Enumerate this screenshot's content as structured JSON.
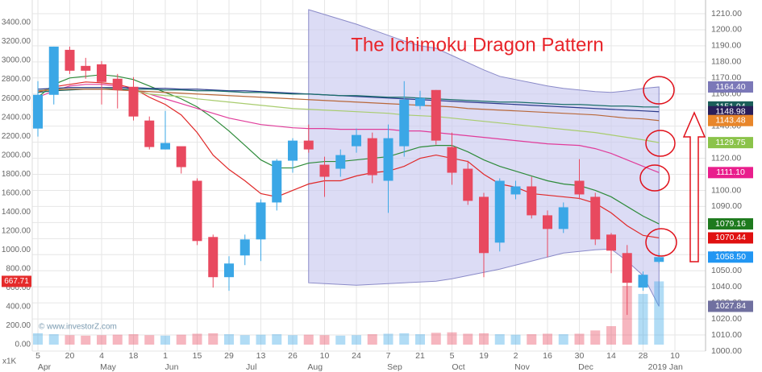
{
  "chart_data": {
    "type": "candlestick",
    "title": "The Ichimoku Dragon Pattern",
    "watermark": "© www.investorZ.com",
    "volume_unit": "x1K",
    "up_color": "#3ba7e6",
    "down_color": "#e8495f",
    "categories": [
      "5",
      null,
      "20",
      null,
      "4",
      null,
      "18",
      null,
      "1",
      null,
      "15",
      null,
      "29",
      null,
      "13",
      null,
      "26",
      null,
      "10",
      null,
      "24",
      null,
      "7",
      null,
      "21",
      null,
      "5",
      null,
      "19",
      null,
      "2",
      null,
      "16",
      null,
      "30",
      null,
      "14",
      null,
      "28",
      null,
      "10"
    ],
    "months": [
      "Apr",
      null,
      null,
      null,
      "May",
      null,
      null,
      null,
      "Jun",
      null,
      null,
      null,
      null,
      "Jul",
      null,
      null,
      null,
      "Aug",
      null,
      null,
      null,
      null,
      "Sep",
      null,
      null,
      null,
      "Oct",
      null,
      null,
      null,
      "Nov",
      null,
      null,
      null,
      "Dec",
      null,
      null,
      null,
      null,
      "2019 Jan",
      null
    ],
    "open": [
      1138.5,
      1159.5,
      1187.5,
      1177.5,
      1178.5,
      1169.5,
      1164.5,
      1143.5,
      1125.5,
      1127.5,
      1106,
      1071,
      1046,
      1059.5,
      1069.5,
      1092.5,
      1118.5,
      1131,
      1116,
      1113.5,
      1127.5,
      1132.5,
      1106,
      1127.5,
      1152.5,
      1162.5,
      1127,
      1113.5,
      1096,
      1067.5,
      1097.5,
      1102.5,
      1084.5,
      1076,
      1106,
      1096,
      1072.5,
      1061,
      1039.5,
      1055.5,
      null
    ],
    "high": [
      1168,
      1189.5,
      1189.5,
      1182.5,
      1180.5,
      1172.5,
      1170.5,
      1146,
      1149.5,
      1127,
      1107.5,
      1072.5,
      1059,
      1072.5,
      1094.5,
      1119.5,
      1132.5,
      1141,
      1121,
      1125.5,
      1138.5,
      1136,
      1141,
      1168,
      1162,
      1162.5,
      1136,
      1118.5,
      1098.5,
      1107.5,
      1106,
      1108.5,
      1087.5,
      1092.5,
      1119.5,
      1098.5,
      1073.5,
      1066,
      1049.5,
      1061,
      null
    ],
    "low": [
      1133.5,
      1153.5,
      1172.5,
      1169.5,
      1153.5,
      1151,
      1143.5,
      1125.5,
      1125.5,
      1110.5,
      1066,
      1039.5,
      1037.5,
      1053.5,
      1056,
      1087.5,
      1111,
      1123.5,
      1096,
      1108.5,
      1123.5,
      1104.5,
      1086,
      1121,
      1150.5,
      1128.5,
      1103.5,
      1091,
      1046,
      1062,
      1094.5,
      1082.5,
      1058.5,
      1073.5,
      1094.5,
      1066,
      1048.5,
      1022.5,
      1037.5,
      1054.5,
      null
    ],
    "close": [
      1159.5,
      1189.5,
      1174.5,
      1174.5,
      1167.5,
      1162.5,
      1146,
      1127,
      1129.5,
      1114.5,
      1068.5,
      1046,
      1054.5,
      1069.5,
      1092.5,
      1118.5,
      1131,
      1125.5,
      1108.5,
      1122,
      1134.5,
      1109.5,
      1132.5,
      1156.5,
      1157.5,
      1131,
      1111,
      1093.5,
      1061,
      1106,
      1102.5,
      1084.5,
      1076,
      1089.5,
      1097.5,
      1069.5,
      1062.5,
      1042.5,
      1047.5,
      1058.5,
      null
    ],
    "volume": [
      120,
      110,
      100,
      95,
      100,
      105,
      110,
      100,
      95,
      105,
      115,
      120,
      110,
      100,
      105,
      110,
      100,
      105,
      100,
      95,
      100,
      110,
      115,
      120,
      110,
      125,
      130,
      115,
      120,
      110,
      105,
      110,
      115,
      110,
      115,
      150,
      195,
      620,
      535,
      667.71,
      null
    ],
    "volume_tag": {
      "value": 667.71,
      "label": "667.71",
      "color": "#e52b2b"
    },
    "series": [
      {
        "color": "#e02828",
        "values": [
          1161,
          1164.5,
          1166,
          1167.5,
          1167,
          1166,
          1163.5,
          1158,
          1153.5,
          1147,
          1136,
          1122,
          1113,
          1106,
          1098,
          1096,
          1100,
          1104,
          1106,
          1106,
          1109,
          1111,
          1112,
          1115,
          1120,
          1122,
          1120,
          1118,
          1110,
          1104,
          1102,
          1098,
          1097,
          1096,
          1095,
          1092,
          1086,
          1078,
          1072,
          1070.44,
          null
        ]
      },
      {
        "color": "#2e8b3a",
        "values": [
          1158,
          1166,
          1170,
          1171,
          1172,
          1171,
          1169,
          1165,
          1161,
          1157,
          1152,
          1145,
          1137,
          1128,
          1119,
          1114,
          1114,
          1117,
          1118,
          1118,
          1119,
          1120,
          1121,
          1124,
          1127,
          1128,
          1128,
          1124,
          1119,
          1115,
          1112,
          1109,
          1106,
          1104,
          1103,
          1100,
          1096,
          1090,
          1084,
          1079.16,
          null
        ]
      },
      {
        "color": "#e03c9a",
        "values": [
          1158,
          1162,
          1165,
          1166,
          1166,
          1165,
          1163,
          1160,
          1157,
          1154,
          1151,
          1148,
          1145,
          1143,
          1141,
          1140,
          1139,
          1138.5,
          1138.5,
          1138,
          1138,
          1138,
          1138,
          1137,
          1137,
          1136,
          1135,
          1134,
          1133,
          1132,
          1131,
          1130,
          1129,
          1128.5,
          1128,
          1126,
          1123,
          1119,
          1115,
          1111.1,
          null
        ]
      },
      {
        "color": "#a8cc6e",
        "values": [
          1162,
          1163,
          1164,
          1164,
          1164,
          1163,
          1162,
          1160,
          1159,
          1158.5,
          1157,
          1156,
          1155,
          1154,
          1153,
          1152,
          1151,
          1150.5,
          1150,
          1149.5,
          1149,
          1148.5,
          1148,
          1147,
          1146.5,
          1146,
          1145,
          1144,
          1143,
          1142,
          1141,
          1140,
          1139,
          1138,
          1137,
          1136,
          1134.5,
          1133,
          1131.5,
          1129.75,
          null
        ]
      },
      {
        "color": "#2b3a8c",
        "values": [
          1163,
          1163.5,
          1164,
          1164,
          1164,
          1164,
          1164,
          1163.5,
          1163.5,
          1163,
          1163,
          1162.5,
          1162,
          1162,
          1161.5,
          1161,
          1160.5,
          1160,
          1159.5,
          1159,
          1158.5,
          1158,
          1157.5,
          1157,
          1156.5,
          1156,
          1155.5,
          1155,
          1154.5,
          1154,
          1153.5,
          1153,
          1152.5,
          1152,
          1151.5,
          1151,
          1150.5,
          1150,
          1149.5,
          1148.98,
          null
        ]
      },
      {
        "color": "#1b6e6a",
        "values": [
          1161,
          1162,
          1162.5,
          1163,
          1163,
          1163,
          1163,
          1163,
          1162.5,
          1162.5,
          1162,
          1162,
          1161.5,
          1161,
          1161,
          1160.5,
          1160,
          1160,
          1159.5,
          1159,
          1159,
          1158.5,
          1158,
          1158,
          1157.5,
          1157,
          1156.5,
          1156,
          1155.5,
          1155,
          1155,
          1154.5,
          1154,
          1153.5,
          1153.5,
          1153,
          1152.5,
          1152.5,
          1152,
          1151.94,
          null
        ]
      },
      {
        "color": "#b8683a",
        "values": [
          1162,
          1162.5,
          1163,
          1163,
          1163,
          1162.5,
          1162,
          1161.5,
          1161,
          1160.5,
          1160,
          1159.5,
          1159,
          1158.5,
          1158,
          1157.5,
          1157,
          1156.5,
          1156,
          1155.5,
          1155,
          1154.5,
          1154,
          1153.5,
          1153,
          1152.5,
          1152,
          1151,
          1150.5,
          1150,
          1149.5,
          1149,
          1148.5,
          1148,
          1147.5,
          1147,
          1146,
          1145,
          1144.5,
          1143.48,
          null
        ]
      }
    ],
    "cloud": {
      "color": "#c9c9f0",
      "stroke": "#8a8ac8",
      "upper": [
        null,
        null,
        null,
        null,
        null,
        null,
        null,
        null,
        null,
        null,
        null,
        null,
        null,
        null,
        null,
        null,
        null,
        1212.5,
        1209.5,
        1206.5,
        1203.5,
        1200,
        1196.5,
        1193,
        1190,
        1188.5,
        1184,
        1179.5,
        1175,
        1171,
        1169,
        1167,
        1165,
        1163.5,
        1162.5,
        1161.5,
        1161,
        1162,
        1163.5,
        1164.4,
        null
      ],
      "lower": [
        null,
        null,
        null,
        null,
        null,
        null,
        null,
        null,
        null,
        null,
        null,
        null,
        null,
        null,
        null,
        null,
        null,
        1042.5,
        1042,
        1041.5,
        1041,
        1041.5,
        1042,
        1042.5,
        1043,
        1043.5,
        1045,
        1047,
        1049,
        1051,
        1053.5,
        1056,
        1058.5,
        1061,
        1062,
        1063,
        1063.5,
        1056,
        1047,
        1027.84,
        null
      ]
    },
    "price_tags": [
      {
        "value": 1164.4,
        "label": "1164.40",
        "color": "#7b78b8"
      },
      {
        "value": 1151.94,
        "label": "1151.94",
        "color": "#1b5e5a"
      },
      {
        "value": 1148.98,
        "label": "1148.98",
        "color": "#2a1e5a"
      },
      {
        "value": 1143.48,
        "label": "1143.48",
        "color": "#e8862a"
      },
      {
        "value": 1129.75,
        "label": "1129.75",
        "color": "#8bc34a"
      },
      {
        "value": 1111.1,
        "label": "1111.10",
        "color": "#e91e8c"
      },
      {
        "value": 1079.16,
        "label": "1079.16",
        "color": "#1e7a1e"
      },
      {
        "value": 1070.44,
        "label": "1070.44",
        "color": "#e01010"
      },
      {
        "value": 1058.5,
        "label": "1058.50",
        "color": "#2196f3"
      },
      {
        "value": 1027.84,
        "label": "1027.84",
        "color": "#7070a0"
      }
    ],
    "ylim": [
      1000,
      1210
    ],
    "yticks": [
      {
        "value": 1000,
        "label": "1000.00"
      },
      {
        "value": 1010,
        "label": "1010.00"
      },
      {
        "value": 1020,
        "label": "1020.00"
      },
      {
        "value": 1030,
        "label": "1030.00"
      },
      {
        "value": 1040,
        "label": "1040.00"
      },
      {
        "value": 1050,
        "label": "1050.00"
      },
      {
        "value": 1060,
        "label": "1060.00"
      },
      {
        "value": 1070,
        "label": "1070.00"
      },
      {
        "value": 1080,
        "label": "1080.00"
      },
      {
        "value": 1090,
        "label": "1090.00"
      },
      {
        "value": 1100,
        "label": "1100.00"
      },
      {
        "value": 1110,
        "label": "1110.00"
      },
      {
        "value": 1120,
        "label": "1120.00"
      },
      {
        "value": 1130,
        "label": "1130.00"
      },
      {
        "value": 1140,
        "label": "1140.00"
      },
      {
        "value": 1150,
        "label": "1150.00"
      },
      {
        "value": 1160,
        "label": "1160.00"
      },
      {
        "value": 1170,
        "label": "1170.00"
      },
      {
        "value": 1180,
        "label": "1180.00"
      },
      {
        "value": 1190,
        "label": "1190.00"
      },
      {
        "value": 1200,
        "label": "1200.00"
      },
      {
        "value": 1210,
        "label": "1210.00"
      }
    ],
    "y2lim": [
      0,
      3400
    ],
    "y2ticks": [
      {
        "value": 0,
        "label": "0.00"
      },
      {
        "value": 200,
        "label": "200.00"
      },
      {
        "value": 400,
        "label": "400.00"
      },
      {
        "value": 600,
        "label": "600.00"
      },
      {
        "value": 800,
        "label": "800.00"
      },
      {
        "value": 1000,
        "label": "1000.00"
      },
      {
        "value": 1200,
        "label": "1200.00"
      },
      {
        "value": 1400,
        "label": "1400.00"
      },
      {
        "value": 1600,
        "label": "1600.00"
      },
      {
        "value": 1800,
        "label": "1800.00"
      },
      {
        "value": 2000,
        "label": "2000.00"
      },
      {
        "value": 2200,
        "label": "2200.00"
      },
      {
        "value": 2400,
        "label": "2400.00"
      },
      {
        "value": 2600,
        "label": "2600.00"
      },
      {
        "value": 2800,
        "label": "2800.00"
      },
      {
        "value": 3000,
        "label": "3000.00"
      },
      {
        "value": 3200,
        "label": "3200.00"
      },
      {
        "value": 3400,
        "label": "3400.00"
      }
    ],
    "grid": true
  }
}
